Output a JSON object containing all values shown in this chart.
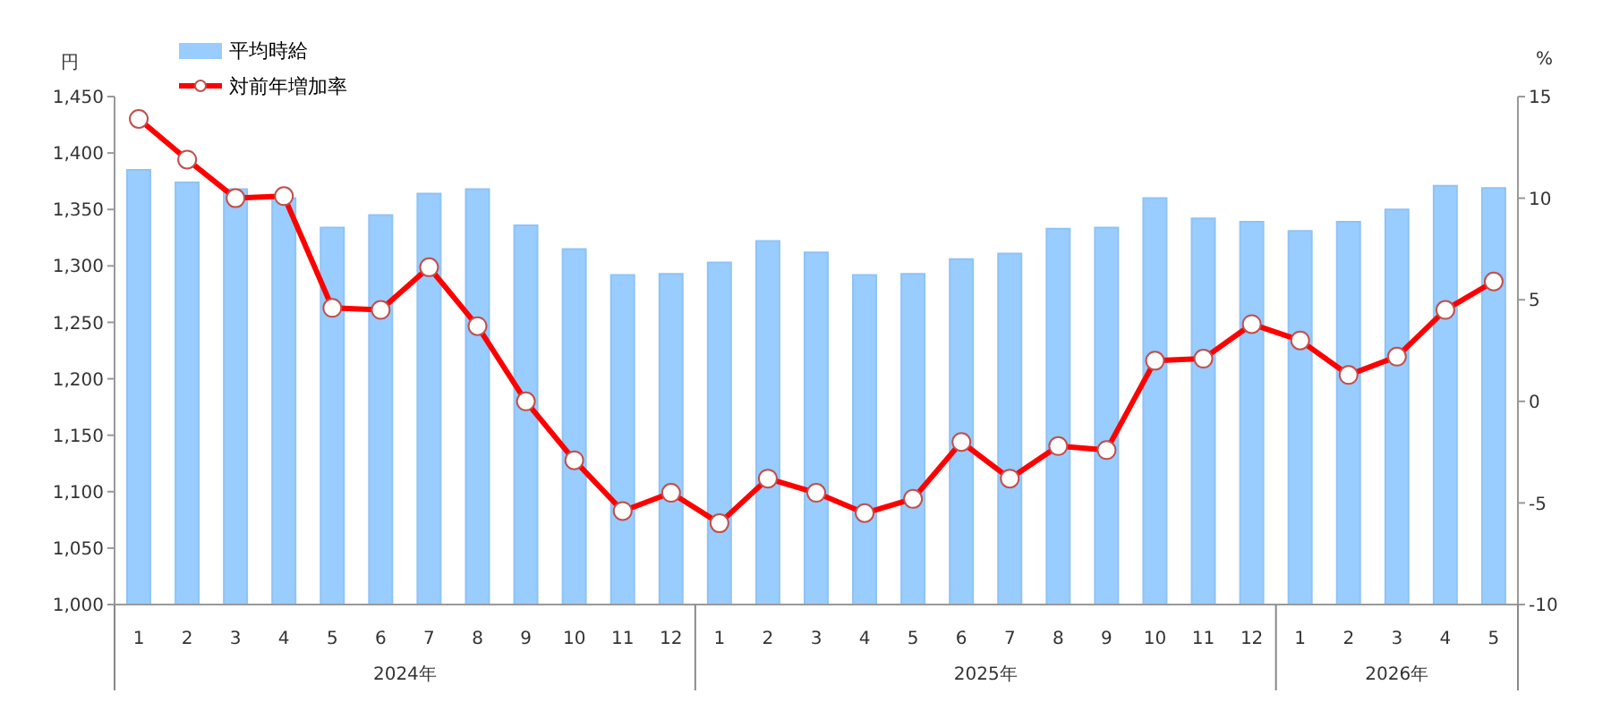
{
  "chart_data": {
    "type": "bar",
    "categories": [
      "1",
      "2",
      "3",
      "4",
      "5",
      "6",
      "7",
      "8",
      "9",
      "10",
      "11",
      "12",
      "1",
      "2",
      "3",
      "4",
      "5",
      "6",
      "7",
      "8",
      "9",
      "10",
      "11",
      "12",
      "1",
      "2",
      "3",
      "4",
      "5"
    ],
    "annotations": [
      "2024年",
      "2025年",
      "2026年"
    ],
    "ylabel": "円",
    "y2label": "%",
    "series": [
      {
        "name": "平均時給",
        "color": "#99ccff",
        "values": [
          1385,
          1374,
          1368,
          1360,
          1334,
          1345,
          1364,
          1368,
          1336,
          1315,
          1292,
          1293,
          1303,
          1322,
          1312,
          1292,
          1293,
          1306,
          1311,
          1333,
          1334,
          1360,
          1342,
          1339,
          1331,
          1339,
          1350,
          1371,
          1369
        ]
      },
      {
        "name": "対前年増加率",
        "type": "line",
        "axis": "y2",
        "color": "#ff0000",
        "marker": "circle",
        "values": [
          13.9,
          11.9,
          10.0,
          10.1,
          4.6,
          4.5,
          6.6,
          3.7,
          0.0,
          -2.9,
          -5.4,
          -4.5,
          -6.0,
          -3.8,
          -4.5,
          -5.5,
          -4.8,
          -2.0,
          -3.8,
          -2.2,
          -2.4,
          2.0,
          2.1,
          3.8,
          3.0,
          1.3,
          2.2,
          4.5,
          5.9
        ]
      }
    ],
    "ylim": [
      1000,
      1450
    ],
    "yticks": [
      {
        "value": 1000,
        "label": "1,000"
      },
      {
        "value": 1050,
        "label": "1,050"
      },
      {
        "value": 1100,
        "label": "1,100"
      },
      {
        "value": 1150,
        "label": "1,150"
      },
      {
        "value": 1200,
        "label": "1,200"
      },
      {
        "value": 1250,
        "label": "1,250"
      },
      {
        "value": 1300,
        "label": "1,300"
      },
      {
        "value": 1350,
        "label": "1,350"
      },
      {
        "value": 1400,
        "label": "1,400"
      },
      {
        "value": 1450,
        "label": "1,450"
      }
    ],
    "y2lim": [
      -10,
      15
    ],
    "y2ticks": [
      -10,
      -5,
      0,
      5,
      10,
      15
    ],
    "grid": false,
    "legend": "top left"
  }
}
